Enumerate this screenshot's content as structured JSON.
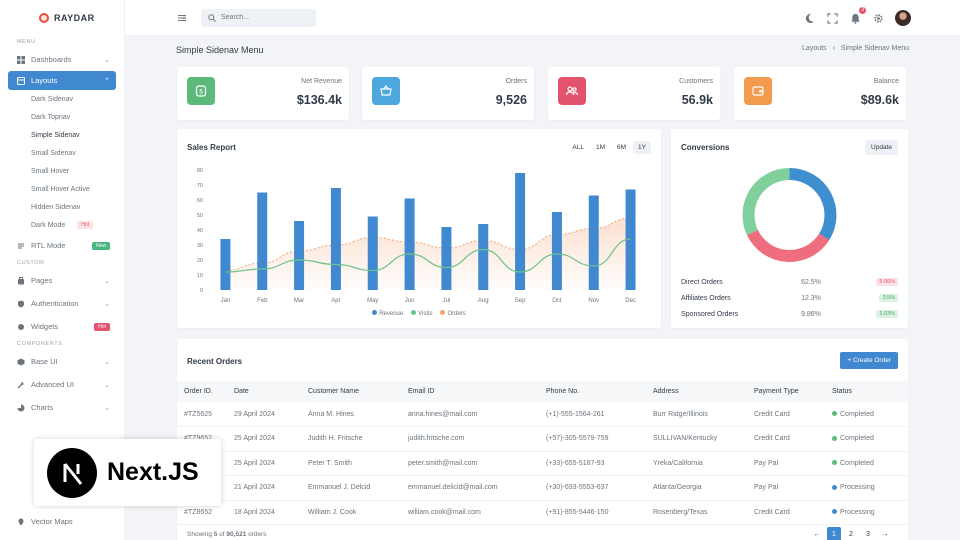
{
  "brand": {
    "name": "RAYDAR"
  },
  "sidebar": {
    "menu_title": "MENU",
    "dashboards": "Dashboards",
    "layouts": "Layouts",
    "layout_items": [
      "Dark Sidenav",
      "Dark Topnav",
      "Simple Sidenav",
      "Small Sidenav",
      "Small Hover",
      "Small Hover Active",
      "Hidden Sidenav",
      "Dark Mode"
    ],
    "dark_mode_badge": "Hot",
    "rtl_mode": "RTL Mode",
    "rtl_badge": "New",
    "custom_title": "CUSTOM",
    "pages": "Pages",
    "authentication": "Authentication",
    "widgets": "Widgets",
    "widgets_badge": "Hot",
    "components_title": "COMPONENTS",
    "base_ui": "Base UI",
    "advanced_ui": "Advanced UI",
    "charts": "Charts",
    "vector_maps": "Vector Maps"
  },
  "topbar": {
    "search_placeholder": "Search...",
    "notification_count": "3"
  },
  "page": {
    "title": "Simple Sidenav Menu",
    "breadcrumb_parent": "Layouts",
    "breadcrumb_sep": "›",
    "breadcrumb_current": "Simple Sidenav Menu"
  },
  "stats": [
    {
      "label": "Net Revenue",
      "value": "$136.4k",
      "color": "#5cb97a"
    },
    {
      "label": "Orders",
      "value": "9,526",
      "color": "#4ea8de"
    },
    {
      "label": "Customers",
      "value": "56.9k",
      "color": "#e3536e"
    },
    {
      "label": "Balance",
      "value": "$89.6k",
      "color": "#f29a4d"
    }
  ],
  "sales": {
    "title": "Sales Report",
    "ranges": [
      "ALL",
      "1M",
      "6M",
      "1Y"
    ],
    "active_range": "1Y"
  },
  "chart_data": {
    "type": "bar",
    "categories": [
      "Jan",
      "Feb",
      "Mar",
      "Apr",
      "May",
      "Jun",
      "Jul",
      "Aug",
      "Sep",
      "Oct",
      "Nov",
      "Dec"
    ],
    "ylim": [
      0,
      80
    ],
    "yticks": [
      0,
      10,
      20,
      30,
      40,
      50,
      60,
      70,
      80
    ],
    "series": [
      {
        "name": "Revenue",
        "type": "bar",
        "color": "#4089d0",
        "values": [
          34,
          65,
          46,
          68,
          49,
          61,
          42,
          44,
          78,
          52,
          63,
          67
        ]
      },
      {
        "name": "Visits",
        "type": "line",
        "color": "#6cc38a",
        "values": [
          12,
          14,
          20,
          17,
          13,
          24,
          15,
          27,
          12,
          24,
          16,
          34
        ]
      },
      {
        "name": "Orders",
        "type": "area",
        "color": "#f3a474",
        "values": [
          13,
          18,
          26,
          30,
          35,
          32,
          28,
          33,
          27,
          37,
          41,
          48
        ]
      }
    ]
  },
  "conversions": {
    "title": "Conversions",
    "update_label": "Update",
    "rows": [
      {
        "name": "Direct Orders",
        "pct": "62.5%",
        "change": "5.06%",
        "bg": "#fde1e4",
        "fg": "#e3536e"
      },
      {
        "name": "Affiliates Orders",
        "pct": "12.3%",
        "change": "3.5%",
        "bg": "#dcf3e4",
        "fg": "#3da66a"
      },
      {
        "name": "Sponsored Orders",
        "pct": "9.86%",
        "change": "1.03%",
        "bg": "#dcf3e4",
        "fg": "#3da66a"
      }
    ],
    "donut": [
      {
        "name": "Direct",
        "value": 34,
        "color": "#3f8fd0"
      },
      {
        "name": "Affiliates",
        "value": 34,
        "color": "#ee6e80"
      },
      {
        "name": "Sponsored",
        "value": 32,
        "color": "#7fd09a"
      }
    ]
  },
  "orders": {
    "title": "Recent Orders",
    "create_label": "+ Create Order",
    "columns": [
      "Order ID.",
      "Date",
      "Customer Name",
      "Email ID",
      "Phone No.",
      "Address",
      "Payment Type",
      "Status"
    ],
    "rows": [
      [
        "#TZ5625",
        "29 April 2024",
        "Anna M. Hines",
        "anna.hines@mail.com",
        "(+1)-555-1564-261",
        "Burr Ridge/Illinois",
        "Credit Card",
        "Completed"
      ],
      [
        "#TZ9652",
        "25 April 2024",
        "Judith H. Fritsche",
        "judith.fritsche.com",
        "(+57)-305-5579-759",
        "SULLIVAN/Kentucky",
        "Credit Card",
        "Completed"
      ],
      [
        "#TZ8527",
        "25 April 2024",
        "Peter T. Smith",
        "peter.smith@mail.com",
        "(+33)-655-5187-93",
        "Yreka/California",
        "Pay Pal",
        "Completed"
      ],
      [
        "#TZ2148",
        "21 April 2024",
        "Emmanuel J. Delcid",
        "emmanuel.delicid@mail.com",
        "(+30)-693-5553-637",
        "Atlanta/Georgia",
        "Pay Pal",
        "Processing"
      ],
      [
        "#TZ8652",
        "18 April 2024",
        "William J. Cook",
        "william.cook@mail.com",
        "(+91)-855-5446-150",
        "Rosenberg/Texas",
        "Credit Card",
        "Processing"
      ]
    ],
    "status_colors": {
      "Completed": "#5cb97a",
      "Processing": "#3f8fd0"
    },
    "showing_prefix": "Showing ",
    "showing_count": "5",
    "showing_mid": " of ",
    "showing_total": "90,521",
    "showing_suffix": " orders",
    "pages": [
      "←",
      "1",
      "2",
      "3",
      "→"
    ],
    "active_page": "1"
  },
  "overlay": {
    "label": "Next.JS"
  }
}
